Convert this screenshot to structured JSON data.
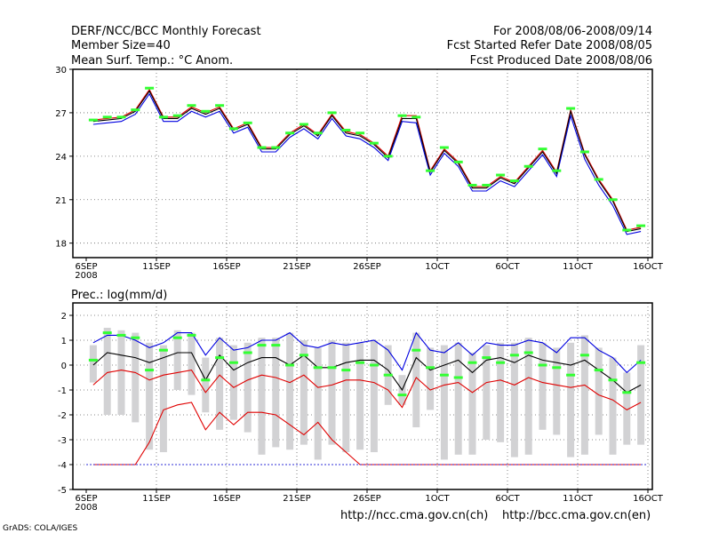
{
  "header": {
    "title_left": "DERF/NCC/BCC Monthly Forecast",
    "member_size": "Member Size=40",
    "variable": "Mean Surf. Temp.: °C Anom.",
    "period": "For 2008/08/06-2008/09/14",
    "started": "Fcst Started Refer Date 2008/08/05",
    "produced": "Fcst Produced Date 2008/08/06"
  },
  "prec_label": "Prec.: log(mm/d)",
  "footer": {
    "url_ch": "http://ncc.cma.gov.cn(ch)",
    "url_en": "http://bcc.cma.gov.cn(en)",
    "grads": "GrADS: COLA/IGES"
  },
  "x_ticks": [
    "6SEP",
    "11SEP",
    "16SEP",
    "21SEP",
    "26SEP",
    "1OCT",
    "6OCT",
    "11OCT",
    "16OCT"
  ],
  "x_tick_sub": "2008",
  "colors": {
    "green": "#33ff33",
    "red": "#e00000",
    "blue": "#0000e0",
    "gray": "#d2d2d4",
    "black": "#000000"
  },
  "chart_data": [
    {
      "type": "line",
      "title": "Mean Surf. Temp.: °C Anom.",
      "xlabel": "",
      "ylabel": "",
      "x_start_day": 0,
      "x_end_day": 40,
      "ylim": [
        17,
        30
      ],
      "y_ticks": [
        18,
        21,
        24,
        27,
        30
      ],
      "grid": true,
      "series": [
        {
          "name": "mean",
          "color": "black",
          "values": [
            26.4,
            26.5,
            26.6,
            27.1,
            28.5,
            26.6,
            26.6,
            27.3,
            26.9,
            27.3,
            25.8,
            26.2,
            24.5,
            24.5,
            25.5,
            26.1,
            25.4,
            26.8,
            25.6,
            25.4,
            24.8,
            23.9,
            26.6,
            26.6,
            22.9,
            24.4,
            23.5,
            21.8,
            21.8,
            22.5,
            22.1,
            23.2,
            24.3,
            22.8,
            27.1,
            24.1,
            22.3,
            20.9,
            18.8,
            19.0
          ]
        },
        {
          "name": "upper",
          "color": "red",
          "values": [
            26.5,
            26.6,
            26.7,
            27.2,
            28.6,
            26.7,
            26.7,
            27.4,
            27.0,
            27.4,
            25.9,
            26.3,
            24.6,
            24.6,
            25.6,
            26.2,
            25.5,
            26.9,
            25.7,
            25.5,
            24.9,
            24.0,
            26.8,
            26.8,
            23.0,
            24.5,
            23.6,
            21.9,
            21.9,
            22.6,
            22.2,
            23.3,
            24.4,
            22.9,
            27.2,
            24.2,
            22.4,
            21.0,
            18.9,
            19.1
          ]
        },
        {
          "name": "lower",
          "color": "blue",
          "values": [
            26.2,
            26.3,
            26.4,
            26.9,
            28.3,
            26.4,
            26.4,
            27.1,
            26.7,
            27.1,
            25.6,
            26.0,
            24.3,
            24.3,
            25.3,
            25.9,
            25.2,
            26.6,
            25.4,
            25.2,
            24.6,
            23.7,
            26.4,
            26.3,
            22.7,
            24.2,
            23.3,
            21.6,
            21.6,
            22.3,
            21.9,
            23.0,
            24.1,
            22.6,
            26.8,
            23.8,
            22.0,
            20.6,
            18.6,
            18.8
          ]
        },
        {
          "name": "marker",
          "color": "green",
          "values": [
            26.5,
            26.7,
            26.7,
            27.2,
            28.7,
            26.7,
            26.8,
            27.5,
            27.1,
            27.5,
            25.9,
            26.3,
            24.6,
            24.6,
            25.6,
            26.2,
            25.6,
            27.0,
            25.8,
            25.6,
            24.9,
            24.0,
            26.8,
            26.7,
            23.0,
            24.6,
            23.6,
            22.0,
            22.0,
            22.7,
            22.3,
            23.3,
            24.5,
            23.0,
            27.3,
            24.3,
            22.4,
            21.0,
            18.9,
            19.2
          ]
        }
      ]
    },
    {
      "type": "line",
      "title": "Prec.: log(mm/d)",
      "xlabel": "",
      "ylabel": "",
      "x_start_day": 0,
      "x_end_day": 40,
      "ylim": [
        -5,
        2.5
      ],
      "y_ticks": [
        -5,
        -4,
        -3,
        -2,
        -1,
        0,
        1,
        2
      ],
      "grid": true,
      "series": [
        {
          "name": "mean",
          "color": "black",
          "values": [
            0.0,
            0.5,
            0.4,
            0.3,
            0.1,
            0.3,
            0.5,
            0.5,
            -0.6,
            0.4,
            -0.2,
            0.1,
            0.3,
            0.3,
            0.0,
            0.4,
            -0.1,
            -0.1,
            0.1,
            0.2,
            0.2,
            -0.2,
            -1.0,
            0.3,
            -0.2,
            0.0,
            0.2,
            -0.3,
            0.2,
            0.3,
            0.1,
            0.4,
            0.2,
            0.1,
            0.0,
            0.2,
            -0.2,
            -0.6,
            -1.1,
            -0.8
          ]
        },
        {
          "name": "upper",
          "color": "blue",
          "values": [
            0.9,
            1.2,
            1.2,
            1.0,
            0.7,
            0.9,
            1.3,
            1.3,
            0.4,
            1.1,
            0.6,
            0.7,
            1.0,
            1.0,
            1.3,
            0.8,
            0.7,
            0.9,
            0.8,
            0.9,
            1.0,
            0.6,
            -0.2,
            1.3,
            0.6,
            0.5,
            0.9,
            0.4,
            0.9,
            0.8,
            0.8,
            1.0,
            0.9,
            0.5,
            1.1,
            1.1,
            0.6,
            0.3,
            -0.3,
            0.2
          ]
        },
        {
          "name": "lower",
          "color": "red",
          "values": [
            -0.8,
            -0.3,
            -0.2,
            -0.3,
            -0.6,
            -0.4,
            -0.3,
            -0.2,
            -1.1,
            -0.4,
            -0.9,
            -0.6,
            -0.4,
            -0.5,
            -0.7,
            -0.4,
            -0.9,
            -0.8,
            -0.6,
            -0.6,
            -0.7,
            -1.0,
            -1.7,
            -0.5,
            -1.0,
            -0.8,
            -0.7,
            -1.1,
            -0.7,
            -0.6,
            -0.8,
            -0.5,
            -0.7,
            -0.8,
            -0.9,
            -0.8,
            -1.2,
            -1.4,
            -1.8,
            -1.5
          ]
        },
        {
          "name": "minimum",
          "color": "red",
          "values": [
            -4.0,
            -4.0,
            -4.0,
            -4.0,
            -3.1,
            -1.8,
            -1.6,
            -1.5,
            -2.6,
            -1.9,
            -2.4,
            -1.9,
            -1.9,
            -2.0,
            -2.4,
            -2.8,
            -2.3,
            -3.0,
            -3.5,
            -4.0,
            -4.0,
            -4.0,
            -4.0,
            -4.0,
            -4.0,
            -4.0,
            -4.0,
            -4.0,
            -4.0,
            -4.0,
            -4.0,
            -4.0,
            -4.0,
            -4.0,
            -4.0,
            -4.0,
            -4.0,
            -4.0,
            -4.0,
            -4.0
          ]
        },
        {
          "name": "box_top",
          "color": "gray",
          "values": [
            0.8,
            1.5,
            1.4,
            1.3,
            0.9,
            0.8,
            1.4,
            1.3,
            0.3,
            1.1,
            0.8,
            0.9,
            1.1,
            1.1,
            1.3,
            1.0,
            0.7,
            1.0,
            0.9,
            0.9,
            1.0,
            0.8,
            -0.4,
            1.3,
            0.7,
            0.8,
            0.9,
            0.5,
            0.8,
            0.9,
            0.9,
            1.1,
            0.9,
            0.7,
            0.9,
            1.2,
            0.7,
            0.3,
            -0.3,
            0.8
          ]
        },
        {
          "name": "box_bottom",
          "color": "gray",
          "values": [
            -0.7,
            -2.0,
            -2.0,
            -2.3,
            -3.4,
            -3.5,
            -1.0,
            -1.2,
            -1.9,
            -2.6,
            -2.2,
            -2.7,
            -3.6,
            -3.3,
            -3.4,
            -3.2,
            -3.8,
            -3.2,
            -3.5,
            -3.4,
            -3.5,
            -1.6,
            -1.6,
            -2.5,
            -1.8,
            -3.8,
            -3.6,
            -3.6,
            -3.0,
            -3.1,
            -3.7,
            -3.6,
            -2.6,
            -2.8,
            -3.7,
            -3.6,
            -2.8,
            -3.6,
            -3.2,
            -3.2
          ]
        },
        {
          "name": "marker",
          "color": "green",
          "values": [
            0.2,
            1.3,
            1.2,
            1.1,
            -0.2,
            0.6,
            1.1,
            1.2,
            -0.6,
            0.3,
            0.1,
            0.5,
            0.8,
            0.8,
            0.0,
            0.4,
            -0.1,
            -0.1,
            -0.2,
            0.1,
            0.0,
            -0.4,
            -1.2,
            0.6,
            -0.1,
            -0.4,
            -0.5,
            0.1,
            0.3,
            0.1,
            0.4,
            0.5,
            0.0,
            -0.1,
            -0.4,
            0.4,
            -0.2,
            -0.6,
            -1.1,
            0.1
          ]
        }
      ]
    }
  ]
}
